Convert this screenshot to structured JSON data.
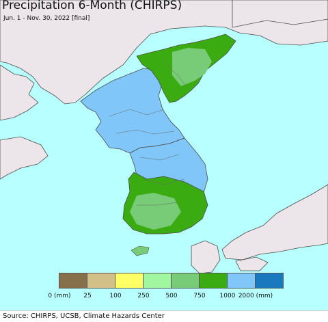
{
  "map": {
    "title": "Precipitation 6-Month (CHIRPS)",
    "subtitle": "Jun. 1 - Nov. 30, 2022 [final]",
    "colors": {
      "ocean": "#b8ffff",
      "land_nodata": "#ece6ea",
      "border": "#4a4a4a"
    }
  },
  "legend": {
    "colors": [
      "#86704c",
      "#d2c088",
      "#ffff66",
      "#a0f7a0",
      "#78cc78",
      "#3aac12",
      "#80c6f8",
      "#1a78be"
    ],
    "ticks": [
      {
        "label": "0 (mm)"
      },
      {
        "label": "25"
      },
      {
        "label": "100"
      },
      {
        "label": "250"
      },
      {
        "label": "500"
      },
      {
        "label": "750"
      },
      {
        "label": "1000"
      },
      {
        "label": "2000 (mm)"
      }
    ]
  },
  "footer": {
    "source": "Source: CHIRPS, UCSB, Climate Hazards Center"
  }
}
